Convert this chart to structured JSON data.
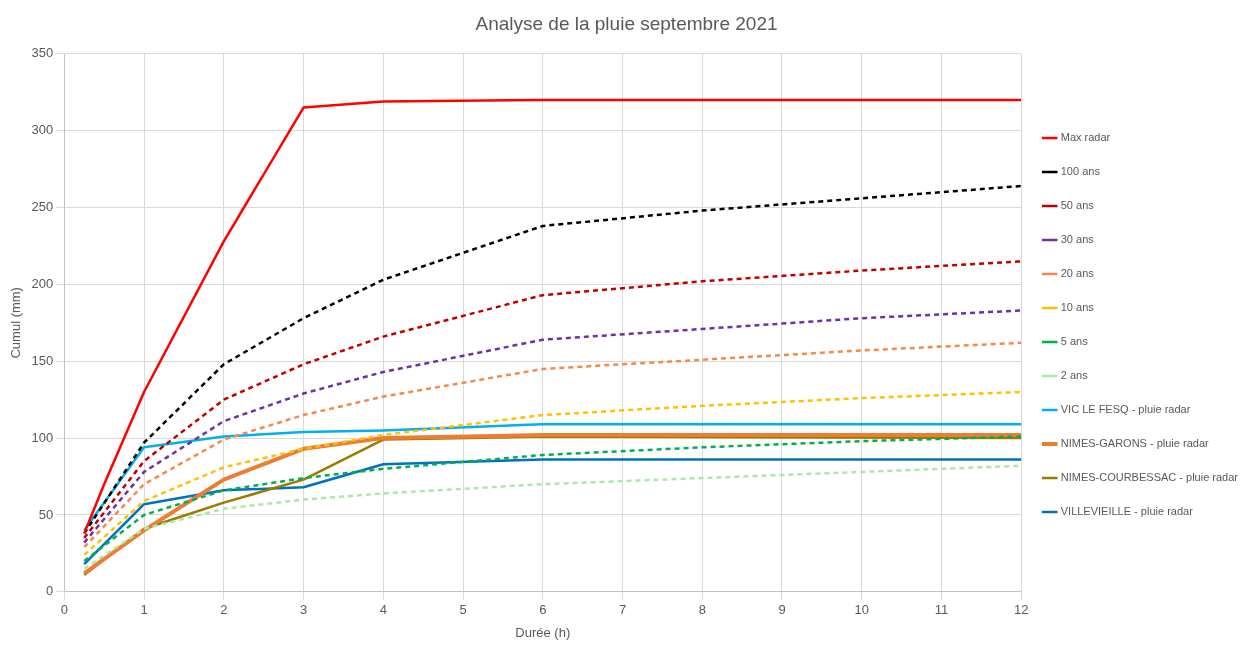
{
  "chart_data": {
    "type": "line",
    "title": "Analyse de la pluie septembre 2021",
    "xlabel": "Durée (h)",
    "ylabel": "Cumul (mm)",
    "xlim": [
      0,
      12
    ],
    "xticks": [
      0,
      1,
      2,
      3,
      4,
      5,
      6,
      7,
      8,
      9,
      10,
      11,
      12
    ],
    "ylim": [
      0,
      350
    ],
    "yticks": [
      0,
      50,
      100,
      150,
      200,
      250,
      300,
      350
    ],
    "grid": true,
    "legend": "right",
    "marker": "none",
    "series": [
      {
        "name": "Max radar",
        "color": "#ff0000",
        "line_style": "solid",
        "x": [
          0.25,
          0.5,
          1,
          2,
          3,
          4,
          6,
          12
        ],
        "values": [
          38,
          70,
          130,
          228,
          315,
          319,
          320,
          320
        ]
      },
      {
        "name": "100 ans",
        "color": "#000000",
        "line_style": "dashed",
        "x": [
          0.25,
          1,
          2,
          3,
          4,
          6,
          8,
          10,
          12
        ],
        "values": [
          38,
          97,
          148,
          178,
          203,
          238,
          248,
          256,
          264
        ]
      },
      {
        "name": "50 ans",
        "color": "#c00000",
        "line_style": "dashed",
        "x": [
          0.25,
          1,
          2,
          3,
          4,
          6,
          8,
          10,
          12
        ],
        "values": [
          35,
          85,
          125,
          148,
          166,
          193,
          202,
          209,
          215
        ]
      },
      {
        "name": "30 ans",
        "color": "#7030a0",
        "line_style": "dashed",
        "x": [
          0.25,
          1,
          2,
          3,
          4,
          6,
          8,
          10,
          12
        ],
        "values": [
          32,
          78,
          111,
          129,
          143,
          164,
          171,
          178,
          183
        ]
      },
      {
        "name": "20 ans",
        "color": "#f4894a",
        "line_style": "dashed",
        "x": [
          0.25,
          1,
          2,
          3,
          4,
          6,
          8,
          10,
          12
        ],
        "values": [
          29,
          70,
          99,
          115,
          127,
          145,
          151,
          157,
          162
        ]
      },
      {
        "name": "10 ans",
        "color": "#ffc000",
        "line_style": "dashed",
        "x": [
          0.25,
          1,
          2,
          3,
          4,
          6,
          8,
          10,
          12
        ],
        "values": [
          24,
          59,
          81,
          93,
          102,
          115,
          121,
          126,
          130
        ]
      },
      {
        "name": "5 ans",
        "color": "#00b050",
        "line_style": "dashed",
        "x": [
          0.25,
          1,
          2,
          3,
          4,
          6,
          8,
          10,
          12
        ],
        "values": [
          20,
          50,
          66,
          74,
          80,
          89,
          94,
          98,
          101
        ]
      },
      {
        "name": "2 ans",
        "color": "#a9e9a9",
        "line_style": "dashed",
        "x": [
          0.25,
          1,
          2,
          3,
          4,
          6,
          8,
          10,
          12
        ],
        "values": [
          15,
          41,
          54,
          60,
          64,
          70,
          74,
          78,
          82
        ]
      },
      {
        "name": "VIC LE FESQ - pluie radar",
        "color": "#00b0f0",
        "line_style": "solid",
        "x": [
          0.25,
          0.5,
          1,
          2,
          3,
          4,
          6,
          12
        ],
        "values": [
          40,
          58,
          94,
          101,
          104,
          105,
          109,
          109
        ]
      },
      {
        "name": "NIMES-GARONS - pluie radar",
        "color": "#ed7d31",
        "line_style": "solid",
        "x": [
          0.25,
          1,
          2,
          3,
          4,
          6,
          12
        ],
        "values": [
          12,
          40,
          73,
          93,
          100,
          102,
          102
        ]
      },
      {
        "name": "NIMES-COURBESSAC - pluie radar",
        "color": "#9c7a00",
        "line_style": "solid",
        "x": [
          0.25,
          1,
          2,
          3,
          4,
          6,
          12
        ],
        "values": [
          11,
          41,
          58,
          73,
          99,
          101,
          100
        ]
      },
      {
        "name": "VILLEVIEILLE - pluie radar",
        "color": "#0070c0",
        "line_style": "solid",
        "x": [
          0.25,
          1,
          2,
          3,
          4,
          6,
          12
        ],
        "values": [
          18,
          57,
          66,
          68,
          83,
          86,
          86
        ]
      }
    ]
  }
}
